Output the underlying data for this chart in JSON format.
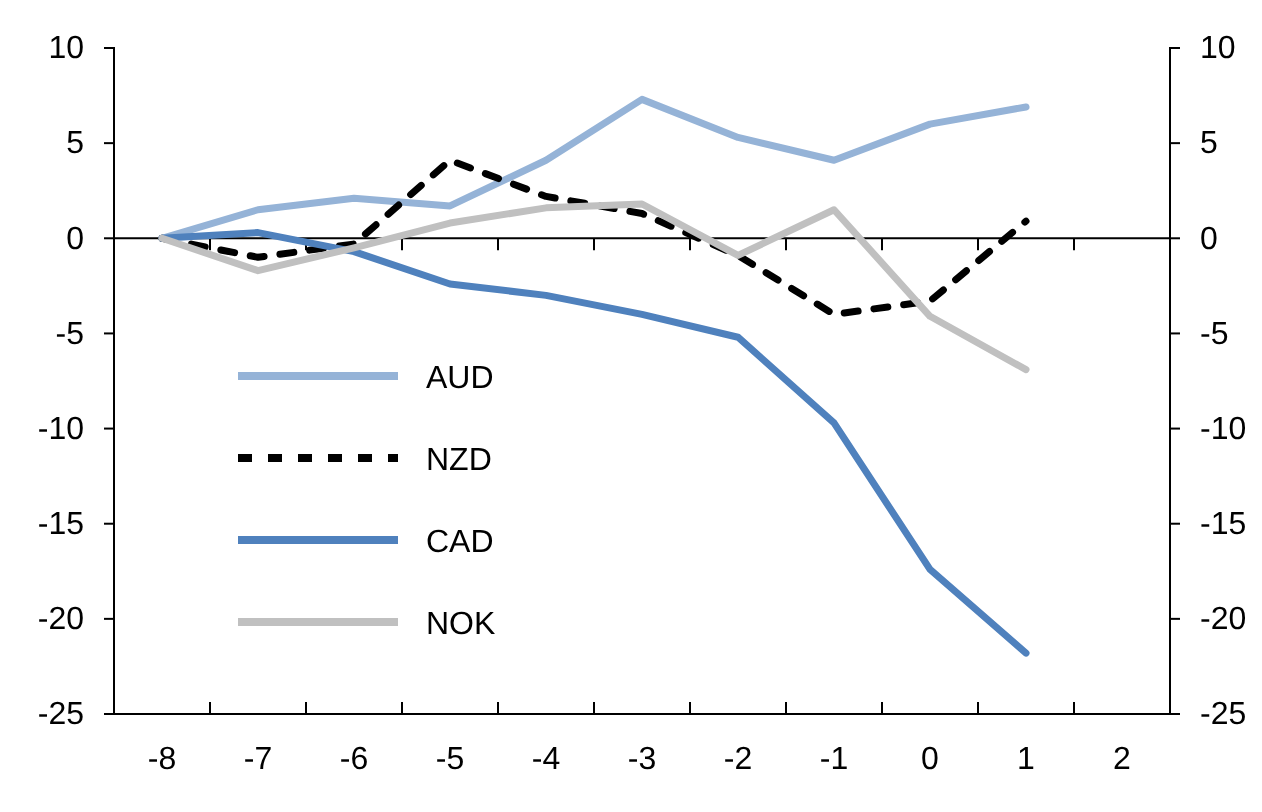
{
  "chart_data": {
    "type": "line",
    "categories": [
      "-8",
      "-7",
      "-6",
      "-5",
      "-4",
      "-3",
      "-2",
      "-1",
      "0",
      "1",
      "2"
    ],
    "ylim": [
      -25,
      10
    ],
    "yticks": [
      -25,
      -20,
      -15,
      -10,
      -5,
      0,
      5,
      10
    ],
    "y2lim": [
      -25,
      10
    ],
    "y2ticks": [
      -25,
      -20,
      -15,
      -10,
      -5,
      0,
      5,
      10
    ],
    "grid": false,
    "legend": "left",
    "marker": "none",
    "ref_lines": [
      {
        "axis": "y",
        "value": 0,
        "color": "#000000"
      }
    ],
    "series": [
      {
        "name": "AUD",
        "color": "#95b3d7",
        "values": [
          0,
          1.5,
          2.1,
          1.7,
          4.1,
          7.3,
          5.3,
          4.1,
          6.0,
          6.9,
          null
        ]
      },
      {
        "name": "NZD",
        "color": "#000000",
        "line_style": "dashed",
        "values": [
          0,
          -1.0,
          -0.3,
          4.1,
          2.2,
          1.3,
          -0.9,
          -4.0,
          -3.3,
          0.9,
          null
        ]
      },
      {
        "name": "CAD",
        "color": "#4f81bd",
        "values": [
          0,
          0.3,
          -0.7,
          -2.4,
          -3.0,
          -4.0,
          -5.2,
          -9.7,
          -17.4,
          -21.8,
          null
        ]
      },
      {
        "name": "NOK",
        "color": "#c0c0c0",
        "values": [
          0,
          -1.7,
          -0.5,
          0.8,
          1.6,
          1.8,
          -0.9,
          1.5,
          -4.1,
          -6.9,
          null
        ]
      }
    ]
  }
}
